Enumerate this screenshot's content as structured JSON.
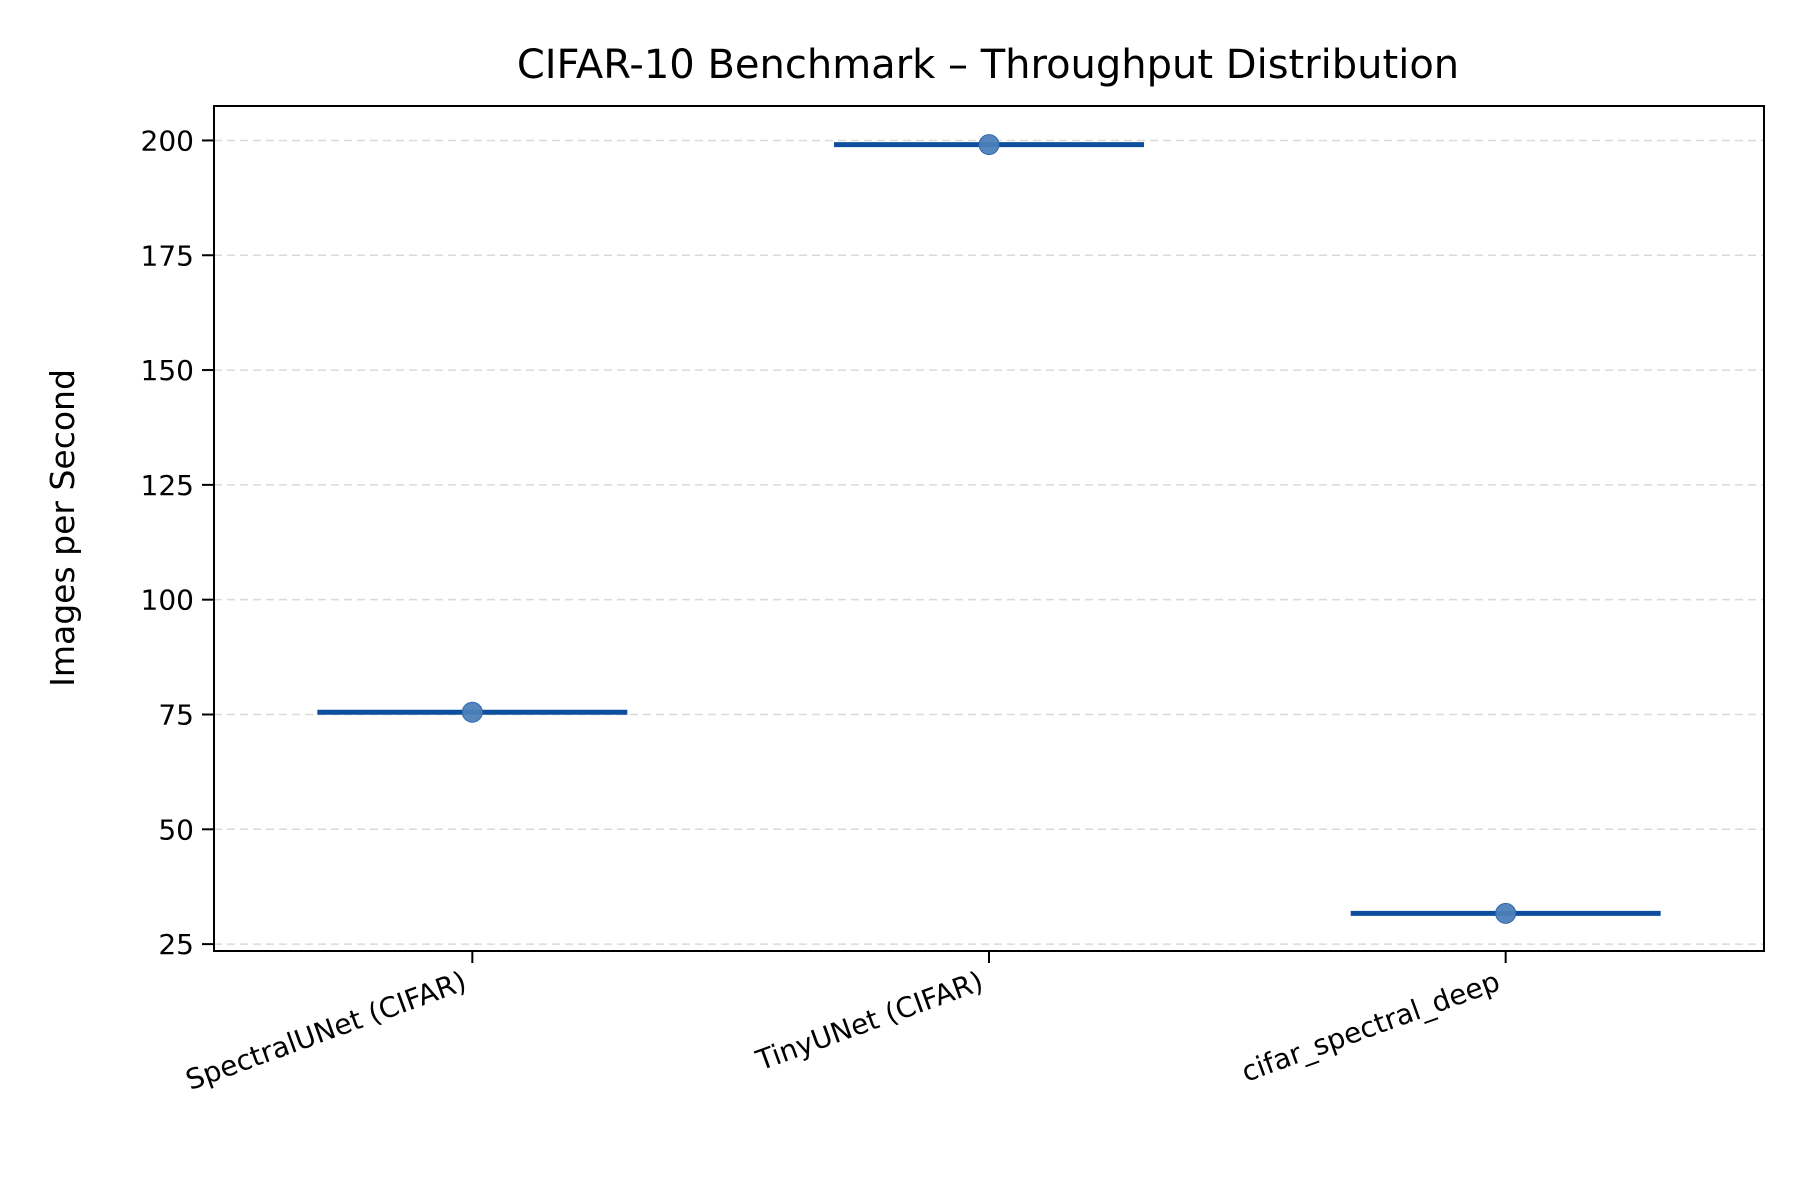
{
  "chart_data": {
    "type": "box",
    "title": "CIFAR-10 Benchmark – Throughput Distribution",
    "xlabel": "",
    "ylabel": "Images per Second",
    "categories": [
      "SpectralUNet (CIFAR)",
      "TinyUNet (CIFAR)",
      "cifar_spectral_deep"
    ],
    "values": [
      75.5,
      199.1,
      31.7
    ],
    "ylim": [
      23.5,
      207.5
    ],
    "yticks": [
      25,
      50,
      75,
      100,
      125,
      150,
      175,
      200
    ],
    "grid": "y, dashed",
    "legend": "none",
    "colors": {
      "median_line": "#0d4f9e",
      "point": "#4d80b9",
      "grid": "#d9d9d9",
      "axes": "#000000"
    }
  }
}
